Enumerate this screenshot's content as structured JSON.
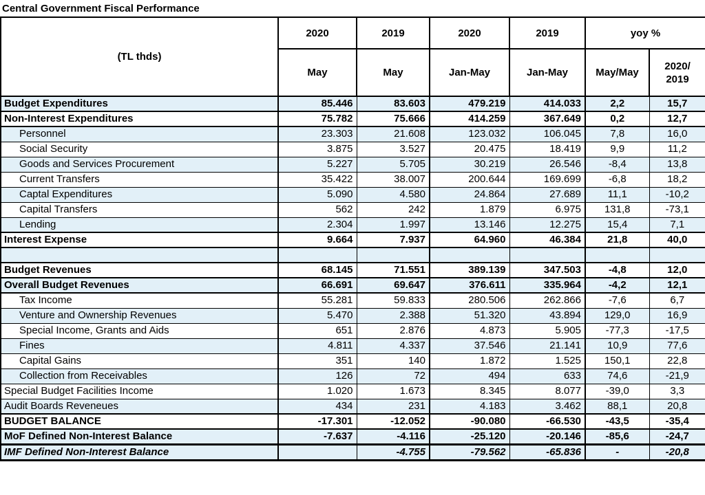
{
  "title": "Central Government Fiscal Performance",
  "table": {
    "unit_label": "(TL thds)",
    "header": {
      "years": [
        "2020",
        "2019",
        "2020",
        "2019"
      ],
      "yoy_label": "yoy %",
      "periods": [
        "May",
        "May",
        "Jan-May",
        "Jan-May"
      ],
      "yoy_sub": [
        "May/May",
        "2020/\n2019"
      ]
    },
    "rows": [
      {
        "label": "Budget Expenditures",
        "values": [
          "85.446",
          "83.603",
          "479.219",
          "414.033",
          "2,2",
          "15,7"
        ],
        "bold": true,
        "indent": false,
        "shaded": true
      },
      {
        "label": "Non-Interest Expenditures",
        "values": [
          "75.782",
          "75.666",
          "414.259",
          "367.649",
          "0,2",
          "12,7"
        ],
        "bold": true,
        "indent": false,
        "shaded": false
      },
      {
        "label": "Personnel",
        "values": [
          "23.303",
          "21.608",
          "123.032",
          "106.045",
          "7,8",
          "16,0"
        ],
        "bold": false,
        "indent": true,
        "shaded": true
      },
      {
        "label": "Social Security",
        "values": [
          "3.875",
          "3.527",
          "20.475",
          "18.419",
          "9,9",
          "11,2"
        ],
        "bold": false,
        "indent": true,
        "shaded": false
      },
      {
        "label": "Goods and Services Procurement",
        "values": [
          "5.227",
          "5.705",
          "30.219",
          "26.546",
          "-8,4",
          "13,8"
        ],
        "bold": false,
        "indent": true,
        "shaded": true
      },
      {
        "label": "Current Transfers",
        "values": [
          "35.422",
          "38.007",
          "200.644",
          "169.699",
          "-6,8",
          "18,2"
        ],
        "bold": false,
        "indent": true,
        "shaded": false
      },
      {
        "label": "Captal Expenditures",
        "values": [
          "5.090",
          "4.580",
          "24.864",
          "27.689",
          "11,1",
          "-10,2"
        ],
        "bold": false,
        "indent": true,
        "shaded": true
      },
      {
        "label": "Capital Transfers",
        "values": [
          "562",
          "242",
          "1.879",
          "6.975",
          "131,8",
          "-73,1"
        ],
        "bold": false,
        "indent": true,
        "shaded": false
      },
      {
        "label": "Lending",
        "values": [
          "2.304",
          "1.997",
          "13.146",
          "12.275",
          "15,4",
          "7,1"
        ],
        "bold": false,
        "indent": true,
        "shaded": true
      },
      {
        "label": "Interest Expense",
        "values": [
          "9.664",
          "7.937",
          "64.960",
          "46.384",
          "21,8",
          "40,0"
        ],
        "bold": true,
        "indent": false,
        "shaded": false
      },
      {
        "label": "",
        "values": [
          "",
          "",
          "",
          "",
          "",
          ""
        ],
        "bold": false,
        "indent": false,
        "shaded": true,
        "spacer": true
      },
      {
        "label": "Budget Revenues",
        "values": [
          "68.145",
          "71.551",
          "389.139",
          "347.503",
          "-4,8",
          "12,0"
        ],
        "bold": true,
        "indent": false,
        "shaded": false
      },
      {
        "label": "Overall Budget Revenues",
        "values": [
          "66.691",
          "69.647",
          "376.611",
          "335.964",
          "-4,2",
          "12,1"
        ],
        "bold": true,
        "indent": false,
        "shaded": true
      },
      {
        "label": "Tax Income",
        "values": [
          "55.281",
          "59.833",
          "280.506",
          "262.866",
          "-7,6",
          "6,7"
        ],
        "bold": false,
        "indent": true,
        "shaded": false
      },
      {
        "label": "Venture and Ownership Revenues",
        "values": [
          "5.470",
          "2.388",
          "51.320",
          "43.894",
          "129,0",
          "16,9"
        ],
        "bold": false,
        "indent": true,
        "shaded": true
      },
      {
        "label": "Special Income, Grants and Aids",
        "values": [
          "651",
          "2.876",
          "4.873",
          "5.905",
          "-77,3",
          "-17,5"
        ],
        "bold": false,
        "indent": true,
        "shaded": false
      },
      {
        "label": "Fines",
        "values": [
          "4.811",
          "4.337",
          "37.546",
          "21.141",
          "10,9",
          "77,6"
        ],
        "bold": false,
        "indent": true,
        "shaded": true
      },
      {
        "label": "Capital Gains",
        "values": [
          "351",
          "140",
          "1.872",
          "1.525",
          "150,1",
          "22,8"
        ],
        "bold": false,
        "indent": true,
        "shaded": false
      },
      {
        "label": "Collection from Receivables",
        "values": [
          "126",
          "72",
          "494",
          "633",
          "74,6",
          "-21,9"
        ],
        "bold": false,
        "indent": true,
        "shaded": true
      },
      {
        "label": "Special Budget Facilities Income",
        "values": [
          "1.020",
          "1.673",
          "8.345",
          "8.077",
          "-39,0",
          "3,3"
        ],
        "bold": false,
        "indent": false,
        "shaded": false
      },
      {
        "label": "Audit Boards Reveneues",
        "values": [
          "434",
          "231",
          "4.183",
          "3.462",
          "88,1",
          "20,8"
        ],
        "bold": false,
        "indent": false,
        "shaded": true
      },
      {
        "label": "BUDGET BALANCE",
        "values": [
          "-17.301",
          "-12.052",
          "-90.080",
          "-66.530",
          "-43,5",
          "-35,4"
        ],
        "bold": true,
        "indent": false,
        "shaded": false
      },
      {
        "label": "MoF Defined Non-Interest Balance",
        "values": [
          "-7.637",
          "-4.116",
          "-25.120",
          "-20.146",
          "-85,6",
          "-24,7"
        ],
        "bold": true,
        "indent": false,
        "shaded": true
      },
      {
        "label": "IMF Defined Non-Interest Balance",
        "values": [
          "",
          "-4.755",
          "-79.562",
          "-65.836",
          "-",
          "-20,8"
        ],
        "bold": true,
        "italic": true,
        "indent": false,
        "shaded": true,
        "thick_top": true
      }
    ]
  }
}
